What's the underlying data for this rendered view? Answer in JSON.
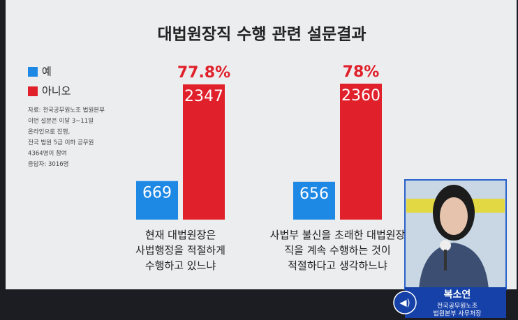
{
  "chart_data": {
    "type": "bar",
    "title": "대법원장직 수행 관련 설문결과",
    "categories": [
      "현재 대법원장은\n사법행정을 적절하게\n수행하고 있느냐",
      "사법부 불신을 초래한 대법원장\n직을 계속 수행하는 것이\n적절하다고 생각하느냐"
    ],
    "series": [
      {
        "name": "예",
        "color": "#1e88e5",
        "values": [
          669,
          656
        ]
      },
      {
        "name": "아니오",
        "color": "#e0202a",
        "values": [
          2347,
          2360
        ]
      }
    ],
    "annotations": [
      "77.8%",
      "78%"
    ],
    "notes": [
      "자료: 전국공무원노조 법원본부",
      "이번 설문은 이달 3~11일",
      "온라인으로 진행,",
      "전국 법원 5급 이하 공무원",
      "4364명이 참여",
      "응답자: 3016명"
    ]
  },
  "speaker": {
    "name": "복소연",
    "role": [
      "전국공무원노조",
      "법원본부 사무처장"
    ]
  }
}
